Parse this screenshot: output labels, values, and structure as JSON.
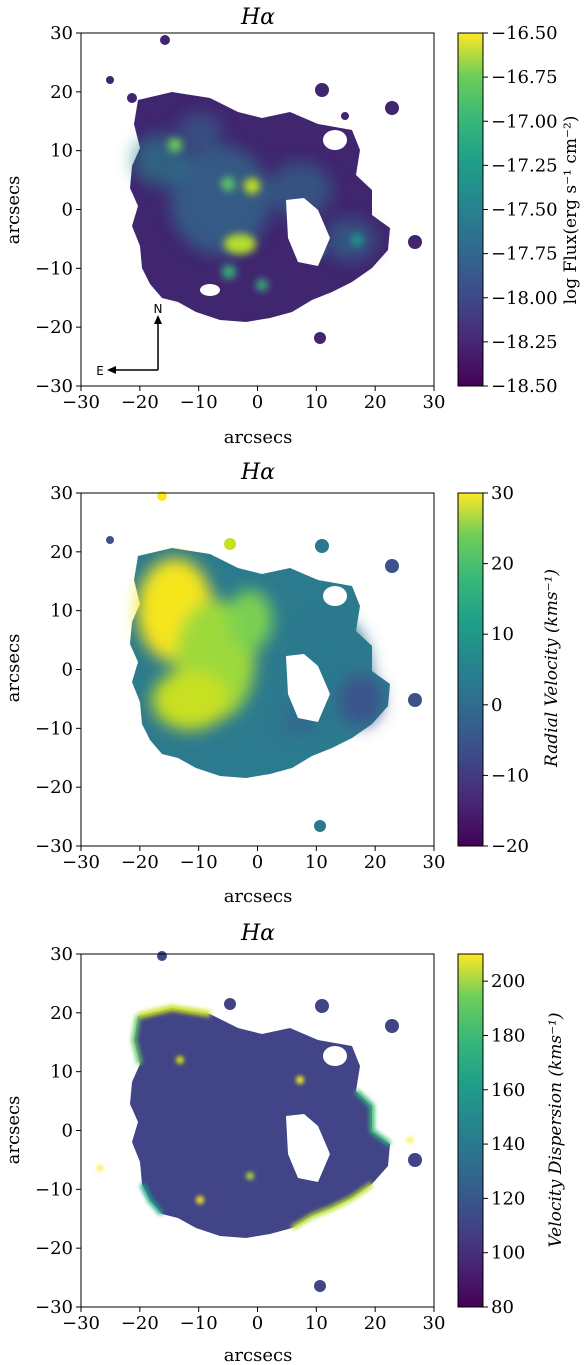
{
  "figure": {
    "panels": [
      {
        "id": "flux",
        "title": "Hα",
        "xlabel": "arcsecs",
        "ylabel": "arcsecs",
        "colorbar_label": "log Flux(erg s⁻¹ cm⁻²)",
        "colorbar_ticks": [
          "−16.50",
          "−16.75",
          "−17.00",
          "−17.25",
          "−17.50",
          "−17.75",
          "−18.00",
          "−18.25",
          "−18.50"
        ],
        "compass": {
          "north": "N",
          "east": "E"
        }
      },
      {
        "id": "velocity",
        "title": "Hα",
        "xlabel": "arcsecs",
        "ylabel": "arcsecs",
        "colorbar_label": "Radial Velocity  (kms⁻¹)",
        "colorbar_ticks": [
          "30",
          "20",
          "10",
          "0",
          "−10",
          "−20"
        ]
      },
      {
        "id": "dispersion",
        "title": "Hα",
        "xlabel": "arcsecs",
        "ylabel": "arcsecs",
        "colorbar_label": "Velocity Dispersion  (kms⁻¹)",
        "colorbar_ticks": [
          "200",
          "180",
          "160",
          "140",
          "120",
          "100",
          "80"
        ]
      }
    ]
  },
  "chart_data": [
    {
      "type": "heatmap",
      "title": "Hα",
      "xlabel": "arcsecs",
      "ylabel": "arcsecs",
      "xlim": [
        -30,
        30
      ],
      "ylim": [
        -30,
        30
      ],
      "x_ticks": [
        -30,
        -20,
        -10,
        0,
        10,
        20,
        30
      ],
      "y_ticks": [
        -30,
        -20,
        -10,
        0,
        10,
        20,
        30
      ],
      "colormap": "viridis",
      "colorbar": {
        "label": "log Flux(erg s⁻¹ cm⁻²)",
        "range": [
          -18.5,
          -16.5
        ],
        "ticks": [
          -16.5,
          -16.75,
          -17.0,
          -17.25,
          -17.5,
          -17.75,
          -18.0,
          -18.25,
          -18.5
        ]
      },
      "bright_knots": [
        {
          "x": -3,
          "y": -5,
          "value": -16.6
        },
        {
          "x": -1,
          "y": 4,
          "value": -16.7
        },
        {
          "x": -5,
          "y": 4,
          "value": -16.9
        },
        {
          "x": -14,
          "y": 11,
          "value": -17.2
        },
        {
          "x": -4,
          "y": -10,
          "value": -17.2
        },
        {
          "x": 1,
          "y": -13,
          "value": -17.3
        },
        {
          "x": 17,
          "y": -3,
          "value": -17.6
        }
      ]
    },
    {
      "type": "heatmap",
      "title": "Hα",
      "xlabel": "arcsecs",
      "ylabel": "arcsecs",
      "xlim": [
        -30,
        30
      ],
      "ylim": [
        -30,
        30
      ],
      "x_ticks": [
        -30,
        -20,
        -10,
        0,
        10,
        20,
        30
      ],
      "y_ticks": [
        -30,
        -20,
        -10,
        0,
        10,
        20,
        30
      ],
      "colormap": "viridis",
      "colorbar": {
        "label": "Radial Velocity  (kms⁻¹)",
        "range": [
          -20,
          30
        ],
        "ticks": [
          30,
          20,
          10,
          0,
          -10,
          -20
        ]
      }
    },
    {
      "type": "heatmap",
      "title": "Hα",
      "xlabel": "arcsecs",
      "ylabel": "arcsecs",
      "xlim": [
        -30,
        30
      ],
      "ylim": [
        -30,
        30
      ],
      "x_ticks": [
        -30,
        -20,
        -10,
        0,
        10,
        20,
        30
      ],
      "y_ticks": [
        -30,
        -20,
        -10,
        0,
        10,
        20,
        30
      ],
      "colormap": "viridis",
      "colorbar": {
        "label": "Velocity Dispersion  (kms⁻¹)",
        "range": [
          80,
          210
        ],
        "ticks": [
          200,
          180,
          160,
          140,
          120,
          100,
          80
        ]
      }
    }
  ]
}
